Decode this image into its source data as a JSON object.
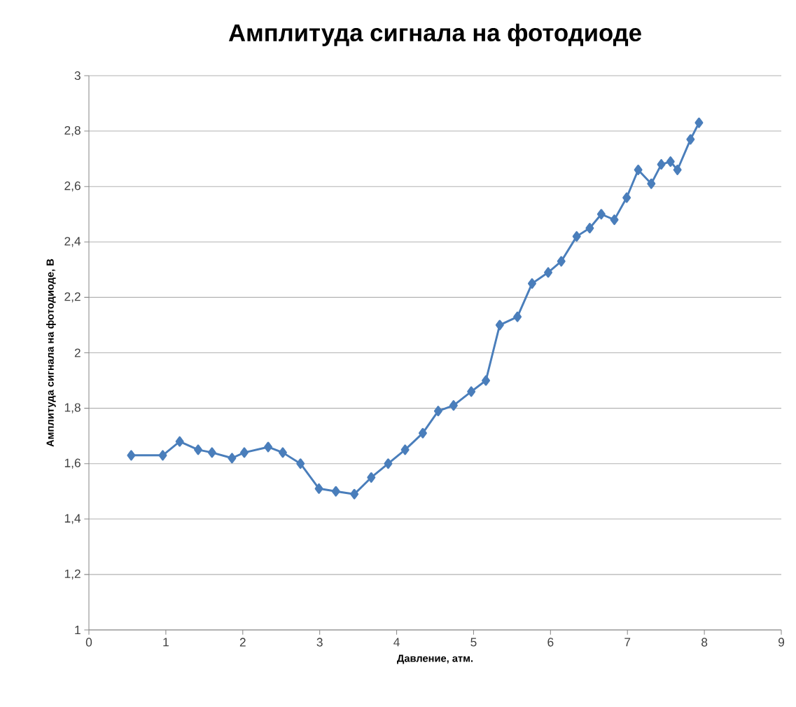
{
  "chart_data": {
    "type": "line",
    "title": "Амплитуда сигнала на фотодиоде",
    "xlabel": "Давление, атм.",
    "ylabel": "Амплитуда сигнала на фотодиоде, В",
    "x": [
      0.55,
      0.96,
      1.18,
      1.42,
      1.6,
      1.86,
      2.02,
      2.33,
      2.52,
      2.75,
      2.99,
      3.21,
      3.45,
      3.67,
      3.89,
      4.11,
      4.34,
      4.54,
      4.74,
      4.97,
      5.16,
      5.34,
      5.57,
      5.76,
      5.97,
      6.14,
      6.34,
      6.51,
      6.66,
      6.83,
      6.99,
      7.14,
      7.31,
      7.44,
      7.56,
      7.65,
      7.82,
      7.93
    ],
    "series": [
      {
        "color": "#4a7ebb",
        "values": [
          1.63,
          1.63,
          1.68,
          1.65,
          1.64,
          1.62,
          1.64,
          1.66,
          1.64,
          1.6,
          1.51,
          1.5,
          1.49,
          1.55,
          1.6,
          1.65,
          1.71,
          1.79,
          1.81,
          1.86,
          1.9,
          2.1,
          2.13,
          2.25,
          2.29,
          2.33,
          2.42,
          2.45,
          2.5,
          2.48,
          2.56,
          2.66,
          2.61,
          2.68,
          2.69,
          2.66,
          2.77,
          2.83
        ]
      }
    ],
    "xlim": [
      0,
      9
    ],
    "xticks": [
      0,
      1,
      2,
      3,
      4,
      5,
      6,
      7,
      8,
      9
    ],
    "ylim": [
      1,
      3
    ],
    "yticks": [
      1,
      {
        "value": 1.2,
        "label": "1,2"
      },
      {
        "value": 1.4,
        "label": "1,4"
      },
      {
        "value": 1.6,
        "label": "1,6"
      },
      {
        "value": 1.8,
        "label": "1,8"
      },
      2,
      {
        "value": 2.2,
        "label": "2,2"
      },
      {
        "value": 2.4,
        "label": "2,4"
      },
      {
        "value": 2.6,
        "label": "2,6"
      },
      {
        "value": 2.8,
        "label": "2,8"
      },
      3
    ],
    "grid": "y",
    "marker": "diamond",
    "line_style": "solid"
  }
}
